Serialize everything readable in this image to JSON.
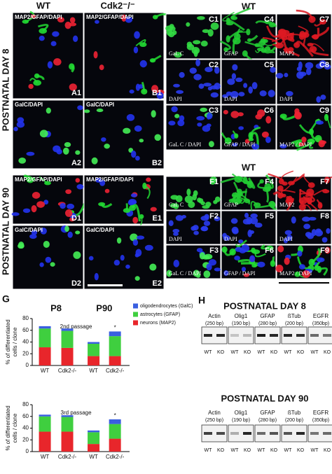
{
  "left_top": {
    "row_label": "POSTNATAL DAY 8",
    "col_labels": [
      "WT",
      "Cdk2⁻/⁻"
    ],
    "images": [
      {
        "id": "A1",
        "caption": "MAP2/GFAP/DAPI"
      },
      {
        "id": "B1",
        "caption": "MAP2/GFAP/DAPI"
      },
      {
        "id": "A2",
        "caption": "GalC/DAPI"
      },
      {
        "id": "B2",
        "caption": "GalC/DAPI"
      }
    ]
  },
  "left_bottom": {
    "row_label": "POSTNATAL DAY 90",
    "images": [
      {
        "id": "D1",
        "caption": "MAP2/GFAP/DAPI"
      },
      {
        "id": "E1",
        "caption": "MAP2/GFAP/DAPI"
      },
      {
        "id": "D2",
        "caption": "GalC/DAPI"
      },
      {
        "id": "E2",
        "caption": "GalC/DAPI"
      }
    ]
  },
  "right_top": {
    "title": "WT",
    "images": [
      {
        "id": "C1",
        "caption": "GaL C"
      },
      {
        "id": "C4",
        "caption": "GFAP"
      },
      {
        "id": "C7",
        "caption": "MAP2"
      },
      {
        "id": "C2",
        "caption": "DAPI"
      },
      {
        "id": "C5",
        "caption": "DAPI"
      },
      {
        "id": "C8",
        "caption": "DAPI"
      },
      {
        "id": "C3",
        "caption": "GaL C / DAPI"
      },
      {
        "id": "C6",
        "caption": "GFAP / DAPI"
      },
      {
        "id": "C9",
        "caption": "MAP2 / DAPI"
      }
    ]
  },
  "right_mid": {
    "title": "WT",
    "images": [
      {
        "id": "F1",
        "caption": "GaL C"
      },
      {
        "id": "F4",
        "caption": "GFAP"
      },
      {
        "id": "F7",
        "caption": "MAP2"
      },
      {
        "id": "F2",
        "caption": "DAPI"
      },
      {
        "id": "F5",
        "caption": "DAPI"
      },
      {
        "id": "F8",
        "caption": "DAPI"
      },
      {
        "id": "F3",
        "caption": "GaL C / DAPI"
      },
      {
        "id": "F6",
        "caption": "GFAP / DAPI"
      },
      {
        "id": "F9",
        "caption": "MAP2 / DAPI"
      }
    ]
  },
  "panel_g": {
    "label": "G",
    "groups": [
      "P8",
      "P90"
    ]
  },
  "chart_data": [
    {
      "type": "bar",
      "title": "2nd passage",
      "stacked": true,
      "y_label": [
        "% of differentiated",
        "cells / clone"
      ],
      "categories": [
        "WT",
        "Cdk2-/-",
        "WT",
        "Cdk2-/-"
      ],
      "series": [
        {
          "name": "neurons (MAP2)",
          "color": "#e8262b",
          "values": [
            31,
            30,
            16,
            16
          ]
        },
        {
          "name": "astrocytes (GFAP)",
          "color": "#3fcf3f",
          "values": [
            32,
            29,
            21,
            34
          ]
        },
        {
          "name": "oligodendrocytes (GalC)",
          "color": "#3a5fe0",
          "values": [
            4,
            4,
            3,
            8
          ]
        }
      ],
      "top_labels": [
        null,
        null,
        null,
        "*"
      ],
      "ylim": [
        0,
        80
      ],
      "yticks": [
        0,
        20,
        40,
        60,
        80
      ],
      "legend": "upper right"
    },
    {
      "type": "bar",
      "title": "3rd passage",
      "stacked": true,
      "y_label": [
        "% of differentiated",
        "cells / clone"
      ],
      "categories": [
        "WT",
        "Cdk2-/-",
        "WT",
        "Cdk2-/-"
      ],
      "series": [
        {
          "color": "#e8262b",
          "values": [
            34,
            34,
            13,
            22
          ]
        },
        {
          "color": "#3fcf3f",
          "values": [
            26,
            25,
            20,
            25
          ]
        },
        {
          "color": "#3a5fe0",
          "values": [
            3,
            3,
            3,
            8
          ]
        }
      ],
      "top_labels": [
        null,
        null,
        null,
        "*"
      ],
      "ylim": [
        0,
        80
      ],
      "yticks": [
        0,
        20,
        40,
        60,
        80
      ]
    }
  ],
  "panel_h": {
    "label": "H",
    "samples": [
      "WT",
      "KO"
    ],
    "gels": [
      {
        "title": "POSTNATAL DAY 8",
        "lanes": [
          {
            "gene": "Actin",
            "size": "(250 bp)"
          },
          {
            "gene": "Olig1",
            "size": "(190 bp)"
          },
          {
            "gene": "GFAP",
            "size": "(280 bp)"
          },
          {
            "gene": "ßTub",
            "size": "(200 bp)"
          },
          {
            "gene": "EGFR",
            "size": "(350bp)"
          }
        ]
      },
      {
        "title": "POSTNATAL DAY 90",
        "lanes": [
          {
            "gene": "Actin",
            "size": "(250 bp)"
          },
          {
            "gene": "Olig1",
            "size": "(190 bp)"
          },
          {
            "gene": "GFAP",
            "size": "(280 bp)"
          },
          {
            "gene": "ßTub",
            "size": "(200 bp)"
          },
          {
            "gene": "EGFR",
            "size": "(350bp)"
          }
        ]
      }
    ]
  }
}
